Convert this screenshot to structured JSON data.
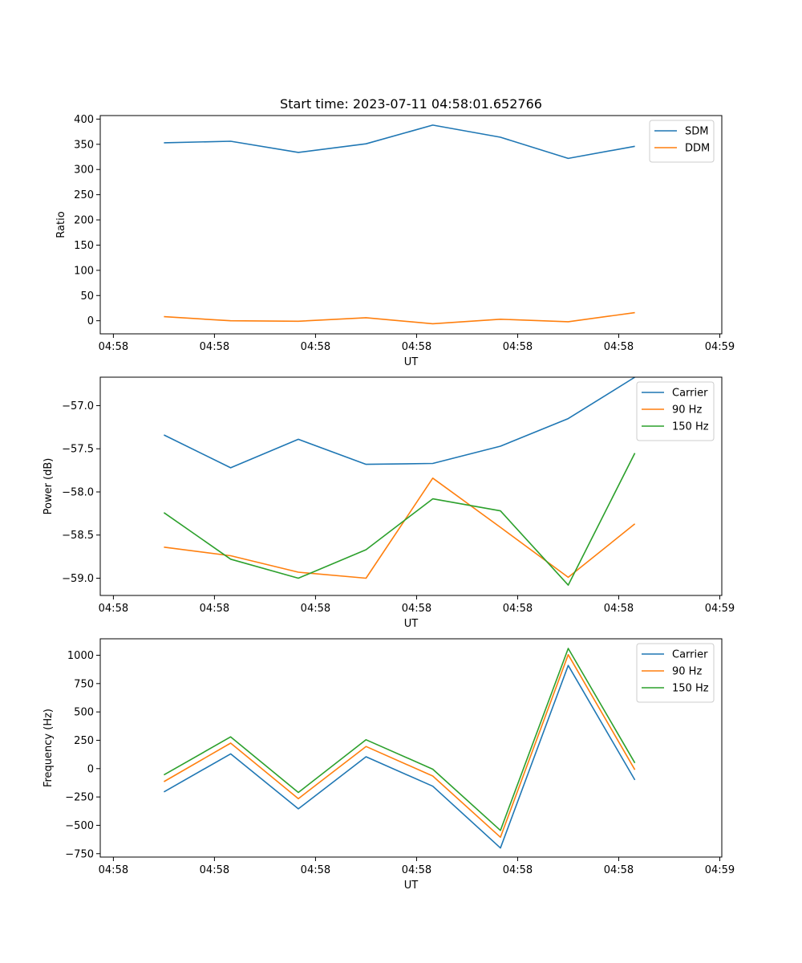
{
  "chart_data": [
    {
      "type": "line",
      "title": "Start time: 2023-07-11 04:58:01.652766",
      "xlabel": "UT",
      "ylabel": "Ratio",
      "x_ticks": [
        "04:58",
        "04:58",
        "04:58",
        "04:58",
        "04:58",
        "04:58",
        "04:59"
      ],
      "x_tick_positions": [
        0,
        1,
        2,
        3,
        4,
        5,
        6
      ],
      "xlim": [
        -0.13,
        6.02
      ],
      "ylim": [
        -26,
        407
      ],
      "y_ticks": [
        0,
        50,
        100,
        150,
        200,
        250,
        300,
        350,
        400
      ],
      "y_tick_labels": [
        "0",
        "50",
        "100",
        "150",
        "200",
        "250",
        "300",
        "350",
        "400"
      ],
      "x": [
        0.5,
        1.16,
        1.83,
        2.5,
        3.16,
        3.83,
        4.5,
        5.16
      ],
      "legend": "upper right",
      "series": [
        {
          "name": "SDM",
          "color": "#1f77b4",
          "values": [
            353,
            356,
            334,
            351,
            388,
            364,
            322,
            346
          ]
        },
        {
          "name": "DDM",
          "color": "#ff7f0e",
          "values": [
            8,
            0,
            -1,
            6,
            -6,
            3,
            -2,
            16
          ]
        }
      ]
    },
    {
      "type": "line",
      "title": "",
      "xlabel": "UT",
      "ylabel": "Power (dB)",
      "x_ticks": [
        "04:58",
        "04:58",
        "04:58",
        "04:58",
        "04:58",
        "04:58",
        "04:59"
      ],
      "x_tick_positions": [
        0,
        1,
        2,
        3,
        4,
        5,
        6
      ],
      "xlim": [
        -0.13,
        6.02
      ],
      "ylim": [
        -59.2,
        -56.67
      ],
      "y_ticks": [
        -59.0,
        -58.5,
        -58.0,
        -57.5,
        -57.0
      ],
      "y_tick_labels": [
        "−59.0",
        "−58.5",
        "−58.0",
        "−57.5",
        "−57.0"
      ],
      "x": [
        0.5,
        1.16,
        1.83,
        2.5,
        3.16,
        3.83,
        4.5,
        5.16
      ],
      "legend": "upper right",
      "series": [
        {
          "name": "Carrier",
          "color": "#1f77b4",
          "values": [
            -57.34,
            -57.72,
            -57.39,
            -57.68,
            -57.67,
            -57.47,
            -57.15,
            -56.67
          ]
        },
        {
          "name": "90 Hz",
          "color": "#ff7f0e",
          "values": [
            -58.64,
            -58.74,
            -58.93,
            -59.0,
            -57.84,
            -58.41,
            -58.99,
            -58.37
          ]
        },
        {
          "name": "150 Hz",
          "color": "#2ca02c",
          "values": [
            -58.24,
            -58.78,
            -59.0,
            -58.67,
            -58.08,
            -58.22,
            -59.08,
            -57.55
          ]
        }
      ]
    },
    {
      "type": "line",
      "title": "",
      "xlabel": "UT",
      "ylabel": "Frequency (Hz)",
      "x_ticks": [
        "04:58",
        "04:58",
        "04:58",
        "04:58",
        "04:58",
        "04:58",
        "04:59"
      ],
      "x_tick_positions": [
        0,
        1,
        2,
        3,
        4,
        5,
        6
      ],
      "xlim": [
        -0.13,
        6.02
      ],
      "ylim": [
        -780,
        1145
      ],
      "y_ticks": [
        -750,
        -500,
        -250,
        0,
        250,
        500,
        750,
        1000
      ],
      "y_tick_labels": [
        "−750",
        "−500",
        "−250",
        "0",
        "250",
        "500",
        "750",
        "1000"
      ],
      "x": [
        0.5,
        1.16,
        1.83,
        2.5,
        3.16,
        3.83,
        4.5,
        5.16
      ],
      "legend": "upper right",
      "series": [
        {
          "name": "Carrier",
          "color": "#1f77b4",
          "values": [
            -205,
            130,
            -355,
            105,
            -155,
            -700,
            910,
            -100
          ]
        },
        {
          "name": "90 Hz",
          "color": "#ff7f0e",
          "values": [
            -115,
            225,
            -265,
            195,
            -65,
            -605,
            1005,
            -10
          ]
        },
        {
          "name": "150 Hz",
          "color": "#2ca02c",
          "values": [
            -55,
            280,
            -210,
            255,
            -5,
            -545,
            1060,
            50
          ]
        }
      ]
    }
  ]
}
